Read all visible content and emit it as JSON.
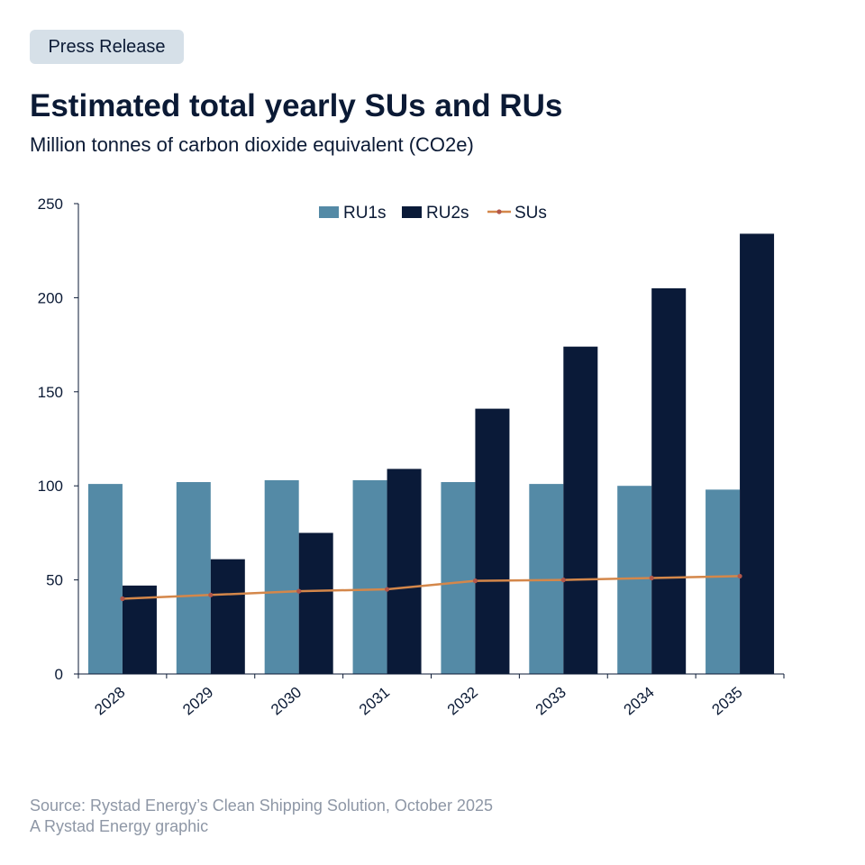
{
  "header": {
    "badge": "Press Release",
    "title": "Estimated total yearly SUs and RUs",
    "subtitle": "Million tonnes of carbon dioxide equivalent (CO2e)"
  },
  "footer": {
    "source": "Source: Rystad Energy’s Clean Shipping Solution, October 2025",
    "credit": "A Rystad Energy graphic"
  },
  "colors": {
    "ru1": "#548aa6",
    "ru2": "#0a1a38",
    "su": "#d4874a",
    "su_marker": "#b2574a",
    "axis": "#0b1a35"
  },
  "chart_data": {
    "type": "bar",
    "categories": [
      "2028",
      "2029",
      "2030",
      "2031",
      "2032",
      "2033",
      "2034",
      "2035"
    ],
    "series": [
      {
        "name": "RU1s",
        "type": "bar",
        "values": [
          101,
          102,
          103,
          103,
          102,
          101,
          100,
          98
        ]
      },
      {
        "name": "RU2s",
        "type": "bar",
        "values": [
          47,
          61,
          75,
          109,
          141,
          174,
          205,
          234
        ]
      },
      {
        "name": "SUs",
        "type": "line",
        "values": [
          40,
          42,
          44,
          45,
          49.5,
          50,
          51,
          52
        ]
      }
    ],
    "ylim": [
      0,
      250
    ],
    "yticks": [
      0,
      50,
      100,
      150,
      200,
      250
    ],
    "legend_position": "top-center",
    "grid": false
  }
}
